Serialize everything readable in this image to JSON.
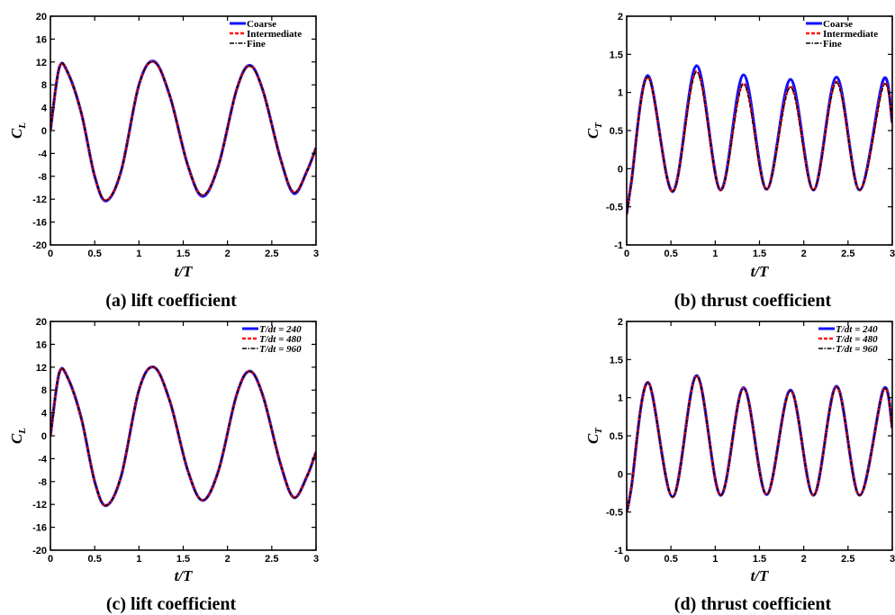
{
  "figure": {
    "colors": {
      "coarse": "#1010ff",
      "intermediate": "#ff1010",
      "fine": "#000000"
    }
  },
  "chart_data": [
    {
      "type": "line",
      "caption": "(a) lift coefficient",
      "xlabel": "t/T",
      "ylabel_main": "C",
      "ylabel_sub": "L",
      "xlim": [
        0,
        3
      ],
      "ylim": [
        -20,
        20
      ],
      "xticks": [
        "0",
        "0.5",
        "1",
        "1.5",
        "2",
        "2.5",
        "3"
      ],
      "yticks": [
        "-20",
        "-16",
        "-12",
        "-8",
        "-4",
        "0",
        "4",
        "8",
        "12",
        "16",
        "20"
      ],
      "legend_position": "top-right",
      "series": [
        {
          "name": "Coarse",
          "style": "solid-blue",
          "x": [
            0,
            0.1,
            0.2,
            0.35,
            0.5,
            0.63,
            0.8,
            1.0,
            1.17,
            1.35,
            1.55,
            1.72,
            1.9,
            2.1,
            2.25,
            2.4,
            2.6,
            2.75,
            2.9,
            3.0
          ],
          "y": [
            0,
            11,
            10,
            3,
            -8,
            -12.3,
            -7,
            8,
            12.1,
            6,
            -6,
            -11.5,
            -6,
            7,
            11.4,
            7,
            -5,
            -11,
            -7,
            -3
          ]
        },
        {
          "name": "Intermediate",
          "style": "dashed-red",
          "x": [
            0,
            0.1,
            0.2,
            0.35,
            0.5,
            0.63,
            0.8,
            1.0,
            1.17,
            1.35,
            1.55,
            1.72,
            1.9,
            2.1,
            2.25,
            2.4,
            2.6,
            2.75,
            2.9,
            3.0
          ],
          "y": [
            0,
            11,
            10,
            3,
            -8,
            -12.2,
            -7,
            8,
            12,
            6,
            -6,
            -11.3,
            -6,
            7,
            11.3,
            7,
            -5,
            -10.8,
            -7,
            -3
          ]
        },
        {
          "name": "Fine",
          "style": "dashdot-black",
          "x": [
            0,
            0.1,
            0.2,
            0.35,
            0.5,
            0.63,
            0.8,
            1.0,
            1.17,
            1.35,
            1.55,
            1.72,
            1.9,
            2.1,
            2.25,
            2.4,
            2.6,
            2.75,
            2.9,
            3.0
          ],
          "y": [
            0,
            11,
            10,
            3,
            -8,
            -12.2,
            -7,
            8,
            12,
            6,
            -6,
            -11.3,
            -6,
            7,
            11.3,
            7,
            -5,
            -10.8,
            -7,
            -3
          ]
        }
      ]
    },
    {
      "type": "line",
      "caption": "(b) thrust coefficient",
      "xlabel": "t/T",
      "ylabel_main": "C",
      "ylabel_sub": "T",
      "xlim": [
        0,
        3
      ],
      "ylim": [
        -1,
        2
      ],
      "xticks": [
        "0",
        "0.5",
        "1",
        "1.5",
        "2",
        "2.5",
        "3"
      ],
      "yticks": [
        "-1",
        "-0.5",
        "0",
        "0.5",
        "1",
        "1.5",
        "2"
      ],
      "legend_position": "top-right",
      "series": [
        {
          "name": "Coarse",
          "style": "solid-blue",
          "x": [
            0,
            0.05,
            0.24,
            0.52,
            0.79,
            1.06,
            1.32,
            1.58,
            1.85,
            2.11,
            2.37,
            2.63,
            2.9,
            3.0
          ],
          "y": [
            -0.6,
            -0.2,
            1.22,
            -0.3,
            1.35,
            -0.28,
            1.23,
            -0.27,
            1.17,
            -0.28,
            1.2,
            -0.28,
            1.17,
            0.6
          ]
        },
        {
          "name": "Intermediate",
          "style": "dashed-red",
          "x": [
            0,
            0.05,
            0.24,
            0.52,
            0.79,
            1.06,
            1.32,
            1.58,
            1.85,
            2.11,
            2.37,
            2.63,
            2.9,
            3.0
          ],
          "y": [
            -0.6,
            -0.2,
            1.2,
            -0.3,
            1.28,
            -0.28,
            1.12,
            -0.27,
            1.08,
            -0.28,
            1.14,
            -0.28,
            1.1,
            0.6
          ]
        },
        {
          "name": "Fine",
          "style": "dashdot-black",
          "x": [
            0,
            0.05,
            0.24,
            0.52,
            0.79,
            1.06,
            1.32,
            1.58,
            1.85,
            2.11,
            2.37,
            2.63,
            2.9,
            3.0
          ],
          "y": [
            -0.6,
            -0.2,
            1.2,
            -0.3,
            1.27,
            -0.28,
            1.11,
            -0.27,
            1.07,
            -0.28,
            1.13,
            -0.28,
            1.09,
            0.6
          ]
        }
      ]
    },
    {
      "type": "line",
      "caption": "(c) lift coefficient",
      "xlabel": "t/T",
      "ylabel_main": "C",
      "ylabel_sub": "L",
      "xlim": [
        0,
        3
      ],
      "ylim": [
        -20,
        20
      ],
      "xticks": [
        "0",
        "0.5",
        "1",
        "1.5",
        "2",
        "2.5",
        "3"
      ],
      "yticks": [
        "-20",
        "-16",
        "-12",
        "-8",
        "-4",
        "0",
        "4",
        "8",
        "12",
        "16",
        "20"
      ],
      "legend_position": "top-right",
      "series": [
        {
          "name": "T/dt = 240",
          "style": "solid-blue",
          "x": [
            0,
            0.1,
            0.2,
            0.35,
            0.5,
            0.63,
            0.8,
            1.0,
            1.17,
            1.35,
            1.55,
            1.72,
            1.9,
            2.1,
            2.25,
            2.4,
            2.6,
            2.75,
            2.9,
            3.0
          ],
          "y": [
            0,
            11,
            10,
            3,
            -8,
            -12.2,
            -7,
            8,
            12,
            6,
            -6,
            -11.3,
            -6,
            7,
            11.3,
            7,
            -5,
            -10.8,
            -7,
            -2.8
          ]
        },
        {
          "name": "T/dt = 480",
          "style": "dashed-red",
          "x": [
            0,
            0.1,
            0.2,
            0.35,
            0.5,
            0.63,
            0.8,
            1.0,
            1.17,
            1.35,
            1.55,
            1.72,
            1.9,
            2.1,
            2.25,
            2.4,
            2.6,
            2.75,
            2.9,
            3.0
          ],
          "y": [
            0,
            11,
            10,
            3,
            -8,
            -12.2,
            -7,
            8,
            12,
            6,
            -6,
            -11.3,
            -6,
            7,
            11.3,
            7,
            -5,
            -10.8,
            -7,
            -2.8
          ]
        },
        {
          "name": "T/dt = 960",
          "style": "dashdot-black",
          "x": [
            0,
            0.1,
            0.2,
            0.35,
            0.5,
            0.63,
            0.8,
            1.0,
            1.17,
            1.35,
            1.55,
            1.72,
            1.9,
            2.1,
            2.25,
            2.4,
            2.6,
            2.75,
            2.9,
            3.0
          ],
          "y": [
            0,
            11,
            10,
            3,
            -8,
            -12.2,
            -7,
            8,
            12,
            6,
            -6,
            -11.3,
            -6,
            7,
            11.3,
            7,
            -5,
            -10.8,
            -7,
            -2.8
          ]
        }
      ]
    },
    {
      "type": "line",
      "caption": "(d) thrust coefficient",
      "xlabel": "t/T",
      "ylabel_main": "C",
      "ylabel_sub": "T",
      "xlim": [
        0,
        3
      ],
      "ylim": [
        -1,
        2
      ],
      "xticks": [
        "0",
        "0.5",
        "1",
        "1.5",
        "2",
        "2.5",
        "3"
      ],
      "yticks": [
        "-1",
        "-0.5",
        "0",
        "0.5",
        "1",
        "1.5",
        "2"
      ],
      "legend_position": "top-right",
      "series": [
        {
          "name": "T/dt = 240",
          "style": "solid-blue",
          "x": [
            0,
            0.05,
            0.24,
            0.52,
            0.79,
            1.06,
            1.32,
            1.58,
            1.85,
            2.11,
            2.37,
            2.63,
            2.9,
            3.0
          ],
          "y": [
            -0.5,
            -0.2,
            1.2,
            -0.3,
            1.29,
            -0.28,
            1.13,
            -0.27,
            1.1,
            -0.28,
            1.15,
            -0.28,
            1.11,
            0.6
          ]
        },
        {
          "name": "T/dt = 480",
          "style": "dashed-red",
          "x": [
            0,
            0.05,
            0.24,
            0.52,
            0.79,
            1.06,
            1.32,
            1.58,
            1.85,
            2.11,
            2.37,
            2.63,
            2.9,
            3.0
          ],
          "y": [
            -0.5,
            -0.2,
            1.2,
            -0.3,
            1.28,
            -0.28,
            1.12,
            -0.27,
            1.09,
            -0.28,
            1.14,
            -0.28,
            1.1,
            0.6
          ]
        },
        {
          "name": "T/dt = 960",
          "style": "dashdot-black",
          "x": [
            0,
            0.05,
            0.24,
            0.52,
            0.79,
            1.06,
            1.32,
            1.58,
            1.85,
            2.11,
            2.37,
            2.63,
            2.9,
            3.0
          ],
          "y": [
            -0.5,
            -0.2,
            1.2,
            -0.3,
            1.28,
            -0.28,
            1.12,
            -0.27,
            1.09,
            -0.28,
            1.14,
            -0.28,
            1.1,
            0.6
          ]
        }
      ]
    }
  ]
}
